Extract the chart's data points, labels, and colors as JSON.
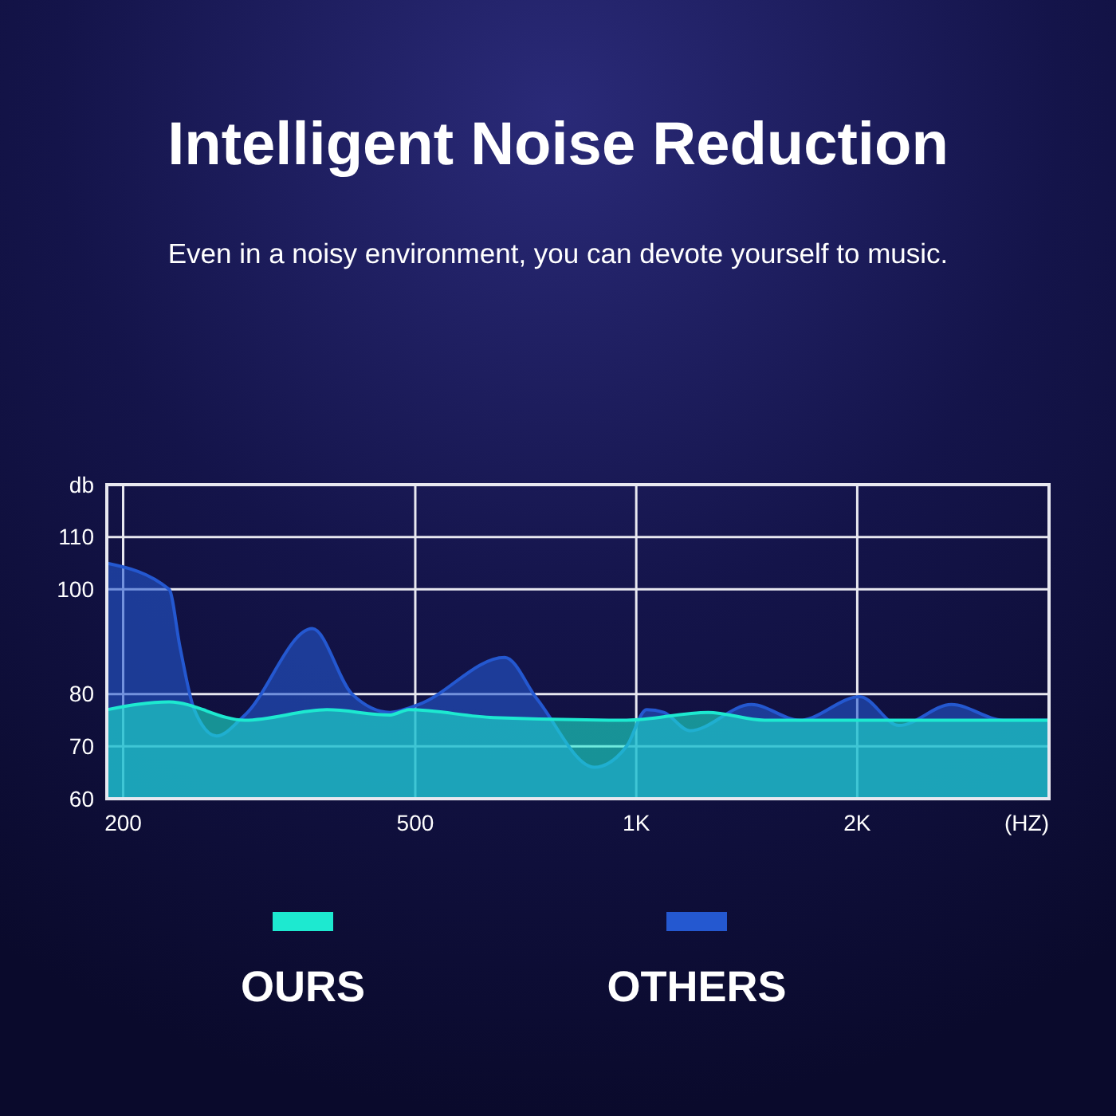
{
  "chart_data": {
    "type": "area",
    "title": "Intelligent Noise Reduction",
    "subtitle": "Even in a noisy environment, you can devote yourself to music.",
    "xlabel": "(HZ)",
    "ylabel": "db",
    "log": "x",
    "xlim": [
      190,
      3650
    ],
    "xticks": [
      200,
      500,
      {
        "value": 1000,
        "label": "1K"
      },
      {
        "value": 2000,
        "label": "2K"
      }
    ],
    "ylim": [
      60,
      120
    ],
    "yticks": [
      60,
      70,
      80,
      100,
      110
    ],
    "grid": true,
    "legend": "bottom",
    "series": [
      {
        "name": "OURS",
        "color": "#1de9d0",
        "x": [
          190,
          231,
          293,
          379,
          462,
          490,
          639,
          970,
          1253,
          1495,
          3650
        ],
        "values": [
          77,
          78.5,
          75,
          77,
          76,
          77,
          75.5,
          75,
          76.5,
          75,
          75
        ]
      },
      {
        "name": "OTHERS",
        "color": "#2458d0",
        "x": [
          190,
          231,
          239,
          250,
          268,
          293,
          362,
          410,
          462,
          505,
          662,
          733,
          877,
          970,
          1033,
          1090,
          1183,
          1435,
          1670,
          2016,
          2280,
          2688,
          3166,
          3650
        ],
        "values": [
          105,
          100,
          89,
          77,
          72,
          76,
          92.5,
          80,
          76.5,
          78,
          87,
          79,
          66,
          70,
          77,
          76.5,
          73,
          78,
          75,
          79.5,
          74,
          78,
          75,
          75
        ]
      }
    ]
  }
}
